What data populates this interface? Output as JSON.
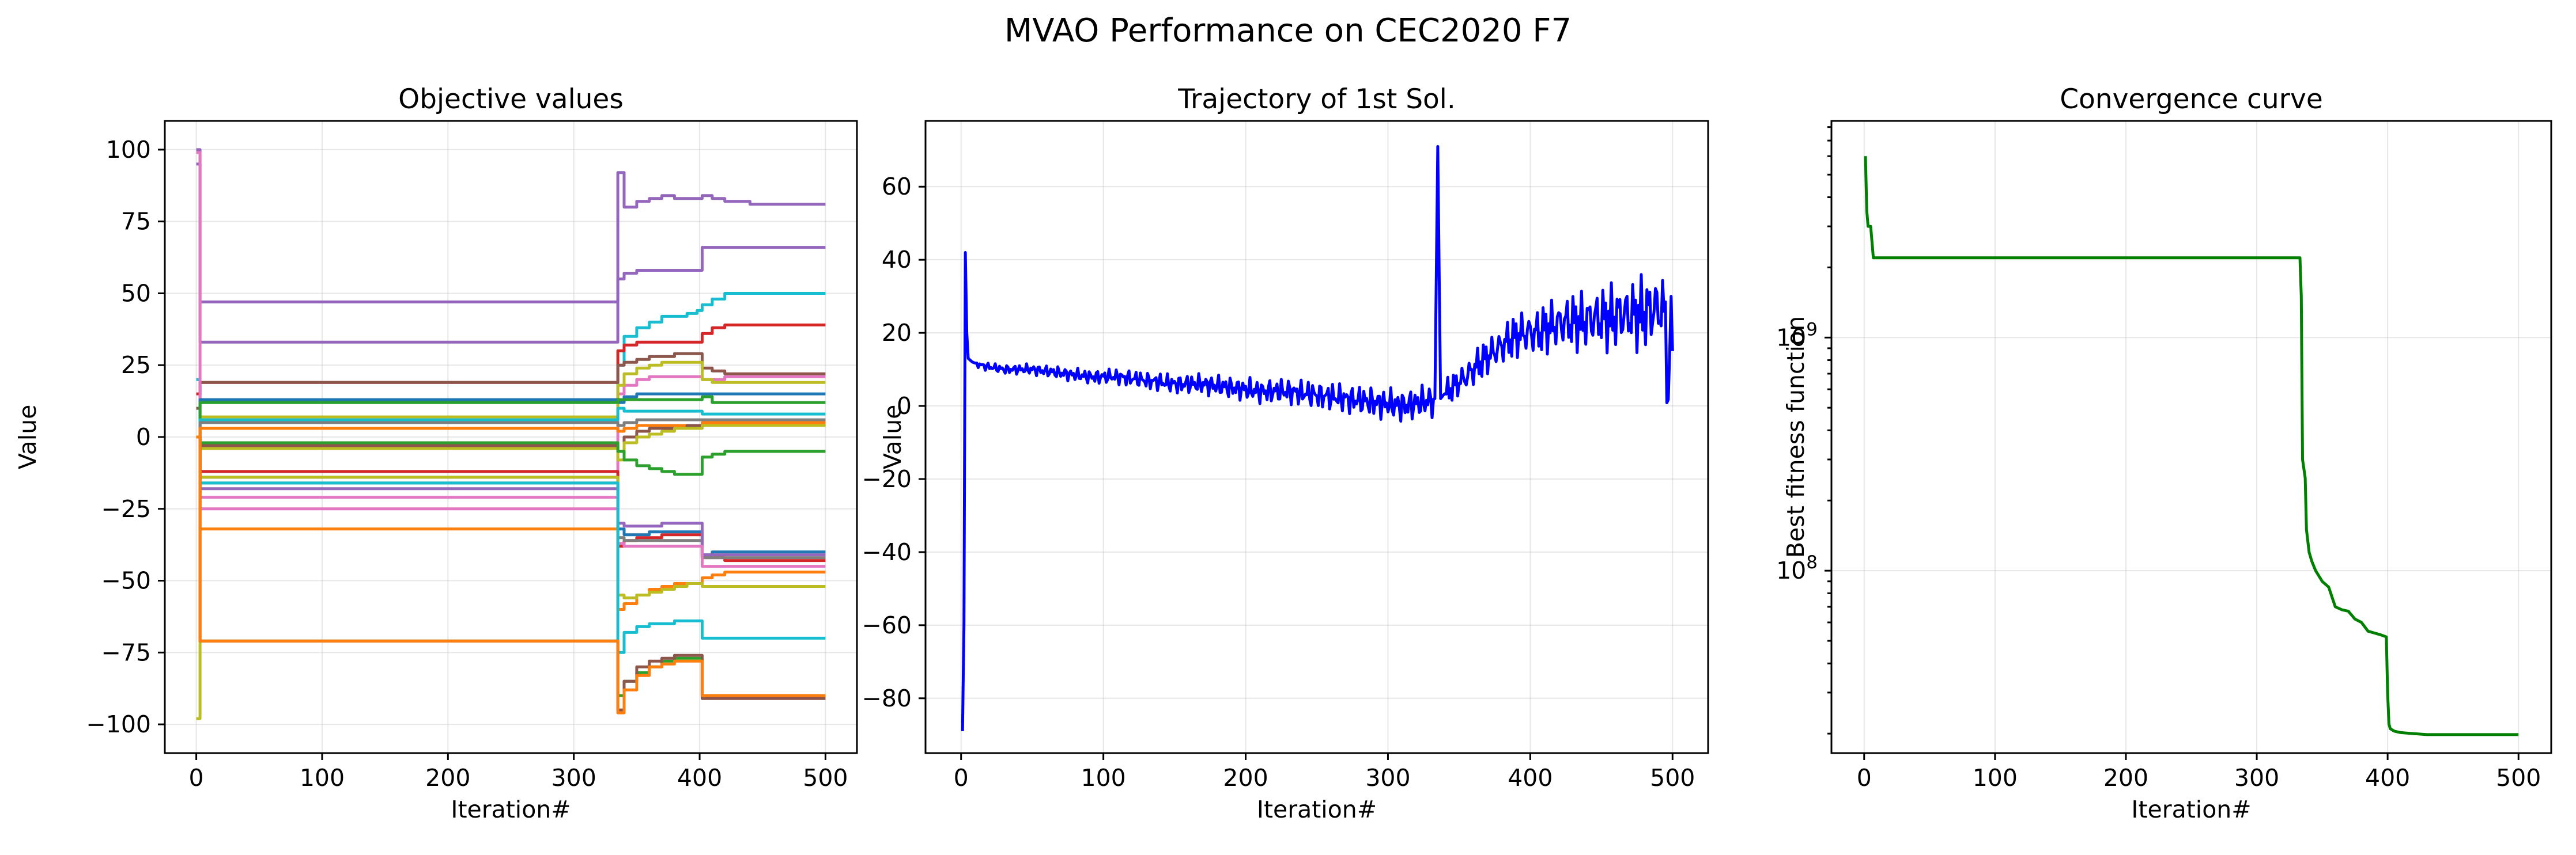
{
  "figure": {
    "suptitle": "MVAO Performance on CEC2020 F7"
  },
  "chart_data": [
    {
      "type": "line",
      "title": "Objective values",
      "xlabel": "Iteration#",
      "ylabel": "Value",
      "xlim": [
        -25,
        525
      ],
      "ylim": [
        -110,
        110
      ],
      "xticks": [
        0,
        100,
        200,
        300,
        400,
        500
      ],
      "yticks": [
        -100,
        -75,
        -50,
        -25,
        0,
        25,
        50,
        75,
        100
      ],
      "grid": true,
      "x_breakpoints": [
        0,
        3,
        333,
        335,
        340,
        350,
        360,
        370,
        380,
        390,
        398,
        402,
        410,
        420,
        440,
        470,
        500
      ],
      "series": [
        {
          "color": "#9467bd",
          "values": [
            100,
            47,
            47,
            92,
            80,
            82,
            83,
            84,
            83,
            83,
            83,
            84,
            83,
            82,
            81,
            81,
            81
          ]
        },
        {
          "color": "#9467bd",
          "values": [
            95,
            33,
            33,
            55,
            57,
            58,
            58,
            58,
            58,
            58,
            58,
            66,
            66,
            66,
            66,
            66,
            66
          ]
        },
        {
          "color": "#17becf",
          "values": [
            20,
            12,
            12,
            25,
            35,
            38,
            40,
            42,
            42,
            43,
            44,
            46,
            48,
            50,
            50,
            50,
            50
          ]
        },
        {
          "color": "#d62728",
          "values": [
            15,
            19,
            19,
            30,
            32,
            33,
            33,
            33,
            33,
            33,
            33,
            36,
            38,
            39,
            39,
            39,
            39
          ]
        },
        {
          "color": "#8c564b",
          "values": [
            10,
            19,
            19,
            25,
            26,
            27,
            28,
            28,
            29,
            29,
            29,
            24,
            23,
            22,
            22,
            22,
            22
          ]
        },
        {
          "color": "#e377c2",
          "values": [
            99,
            -25,
            -25,
            15,
            18,
            20,
            21,
            21,
            21,
            21,
            21,
            20,
            20,
            21,
            21,
            21,
            21
          ]
        },
        {
          "color": "#bcbd22",
          "values": [
            -98,
            7,
            7,
            18,
            22,
            24,
            25,
            26,
            26,
            26,
            26,
            20,
            19,
            19,
            19,
            19,
            19
          ]
        },
        {
          "color": "#1f77b4",
          "values": [
            0,
            13,
            13,
            12,
            14,
            15,
            15,
            15,
            15,
            15,
            15,
            15,
            15,
            15,
            15,
            15,
            15
          ]
        },
        {
          "color": "#2ca02c",
          "values": [
            0,
            12,
            12,
            13,
            13,
            13,
            13,
            13,
            13,
            13,
            13,
            14,
            12,
            12,
            12,
            12,
            12
          ]
        },
        {
          "color": "#17becf",
          "values": [
            0,
            6,
            6,
            10,
            9,
            9,
            9,
            9,
            9,
            9,
            9,
            8,
            8,
            8,
            8,
            8,
            8
          ]
        },
        {
          "color": "#7f7f7f",
          "values": [
            0,
            5,
            5,
            4,
            5,
            6,
            6,
            6,
            6,
            6,
            6,
            6,
            6,
            6,
            6,
            6,
            6
          ]
        },
        {
          "color": "#ff7f0e",
          "values": [
            0,
            3,
            3,
            2,
            3,
            4,
            4,
            4,
            4,
            4,
            4,
            5,
            5,
            5,
            5,
            5,
            5
          ]
        },
        {
          "color": "#8c564b",
          "values": [
            0,
            -3,
            -3,
            -5,
            0,
            2,
            3,
            3,
            3,
            4,
            4,
            4,
            4,
            4,
            4,
            4,
            4
          ]
        },
        {
          "color": "#bcbd22",
          "values": [
            0,
            -4,
            -4,
            -8,
            -2,
            0,
            1,
            2,
            3,
            3,
            3,
            4,
            4,
            4,
            4,
            4,
            4
          ]
        },
        {
          "color": "#2ca02c",
          "values": [
            0,
            -2,
            -2,
            -5,
            -8,
            -10,
            -11,
            -12,
            -13,
            -13,
            -13,
            -7,
            -6,
            -5,
            -5,
            -5,
            -5
          ]
        },
        {
          "color": "#d62728",
          "values": [
            0,
            -12,
            -12,
            -38,
            -36,
            -35,
            -35,
            -34,
            -34,
            -34,
            -34,
            -42,
            -42,
            -43,
            -43,
            -43,
            -43
          ]
        },
        {
          "color": "#1f77b4",
          "values": [
            0,
            -14,
            -14,
            -32,
            -34,
            -34,
            -33,
            -33,
            -33,
            -33,
            -33,
            -41,
            -40,
            -40,
            -40,
            -40,
            -40
          ]
        },
        {
          "color": "#7f7f7f",
          "values": [
            0,
            -16,
            -16,
            -35,
            -36,
            -36,
            -36,
            -36,
            -36,
            -36,
            -36,
            -42,
            -42,
            -42,
            -42,
            -42,
            -42
          ]
        },
        {
          "color": "#9467bd",
          "values": [
            0,
            -18,
            -18,
            -30,
            -31,
            -31,
            -31,
            -30,
            -30,
            -30,
            -30,
            -41,
            -41,
            -41,
            -41,
            -41,
            -41
          ]
        },
        {
          "color": "#e377c2",
          "values": [
            0,
            -21,
            -21,
            -37,
            -38,
            -38,
            -38,
            -38,
            -38,
            -38,
            -38,
            -45,
            -45,
            -45,
            -45,
            -45,
            -45
          ]
        },
        {
          "color": "#ff7f0e",
          "values": [
            0,
            -32,
            -32,
            -60,
            -58,
            -55,
            -53,
            -52,
            -51,
            -51,
            -51,
            -49,
            -48,
            -47,
            -47,
            -47,
            -47
          ]
        },
        {
          "color": "#bcbd22",
          "values": [
            0,
            -14,
            -14,
            -55,
            -56,
            -55,
            -54,
            -53,
            -52,
            -51,
            -51,
            -52,
            -52,
            -52,
            -52,
            -52,
            -52
          ]
        },
        {
          "color": "#17becf",
          "values": [
            0,
            -16,
            -16,
            -75,
            -68,
            -66,
            -65,
            -65,
            -64,
            -64,
            -64,
            -70,
            -70,
            -70,
            -70,
            -70,
            -70
          ]
        },
        {
          "color": "#2ca02c",
          "values": [
            0,
            -71,
            -71,
            -90,
            -85,
            -82,
            -80,
            -78,
            -77,
            -77,
            -77,
            -90,
            -90,
            -90,
            -90,
            -90,
            -90
          ]
        },
        {
          "color": "#8c564b",
          "values": [
            0,
            -71,
            -71,
            -95,
            -85,
            -80,
            -78,
            -77,
            -76,
            -76,
            -76,
            -91,
            -91,
            -91,
            -91,
            -91,
            -91
          ]
        },
        {
          "color": "#ff7f0e",
          "values": [
            0,
            -71,
            -71,
            -96,
            -88,
            -83,
            -80,
            -79,
            -78,
            -78,
            -78,
            -90,
            -90,
            -90,
            -90,
            -90,
            -90
          ]
        }
      ]
    },
    {
      "type": "line",
      "title": "Trajectory of 1st Sol.",
      "xlabel": "Iteration#",
      "ylabel": "Value",
      "xlim": [
        -25,
        525
      ],
      "ylim": [
        -95,
        78
      ],
      "xticks": [
        0,
        100,
        200,
        300,
        400,
        500
      ],
      "yticks": [
        -80,
        -60,
        -40,
        -20,
        0,
        20,
        40,
        60
      ],
      "grid": true,
      "series": [
        {
          "color": "#0000ff",
          "x": [
            1,
            2,
            3,
            4,
            5,
            8,
            15,
            30,
            50,
            70,
            90,
            110,
            130,
            150,
            170,
            190,
            210,
            230,
            250,
            270,
            290,
            310,
            325,
            333,
            335,
            337,
            339,
            345,
            355,
            365,
            375,
            385,
            395,
            405,
            415,
            425,
            435,
            445,
            455,
            465,
            475,
            485,
            490,
            495,
            497,
            499,
            500
          ],
          "values": [
            -89,
            -60,
            42,
            20,
            13,
            12,
            11,
            10,
            10,
            9,
            8,
            8,
            7,
            6,
            6,
            5,
            4,
            4,
            3,
            2,
            1,
            0,
            1,
            2,
            71,
            2,
            3,
            5,
            8,
            12,
            15,
            18,
            20,
            20,
            22,
            23,
            23,
            24,
            24,
            25,
            25,
            26,
            27,
            25,
            -1,
            30,
            15
          ]
        }
      ],
      "noise_note": ""
    },
    {
      "type": "line",
      "title": "Convergence curve",
      "xlabel": "Iteration#",
      "ylabel": "Best fitness function",
      "xlim": [
        -25,
        525
      ],
      "ylim": [
        16500000,
        8500000000
      ],
      "yscale": "log",
      "xticks": [
        0,
        100,
        200,
        300,
        400,
        500
      ],
      "yticks": [
        100000000,
        1000000000
      ],
      "ytick_labels": [
        {
          "base": "10",
          "exp": "8"
        },
        {
          "base": "10",
          "exp": "9"
        }
      ],
      "grid": true,
      "series": [
        {
          "color": "#008000",
          "x": [
            1,
            2,
            3,
            5,
            7,
            8,
            333,
            334,
            335,
            337,
            338,
            340,
            342,
            345,
            350,
            355,
            360,
            365,
            370,
            375,
            380,
            385,
            390,
            395,
            399,
            400,
            401,
            402,
            405,
            410,
            420,
            430,
            440,
            460,
            480,
            500
          ],
          "values": [
            6000000000,
            3500000000,
            3000000000,
            3000000000,
            2200000000,
            2200000000,
            2200000000,
            1500000000,
            300000000,
            250000000,
            150000000,
            120000000,
            110000000,
            100000000,
            90000000,
            85000000,
            70000000,
            68000000,
            67000000,
            62000000,
            60000000,
            55000000,
            54000000,
            53000000,
            52000000,
            30000000,
            22000000,
            21000000,
            20500000,
            20200000,
            20000000,
            19800000,
            19800000,
            19800000,
            19800000,
            19800000
          ]
        }
      ]
    }
  ]
}
